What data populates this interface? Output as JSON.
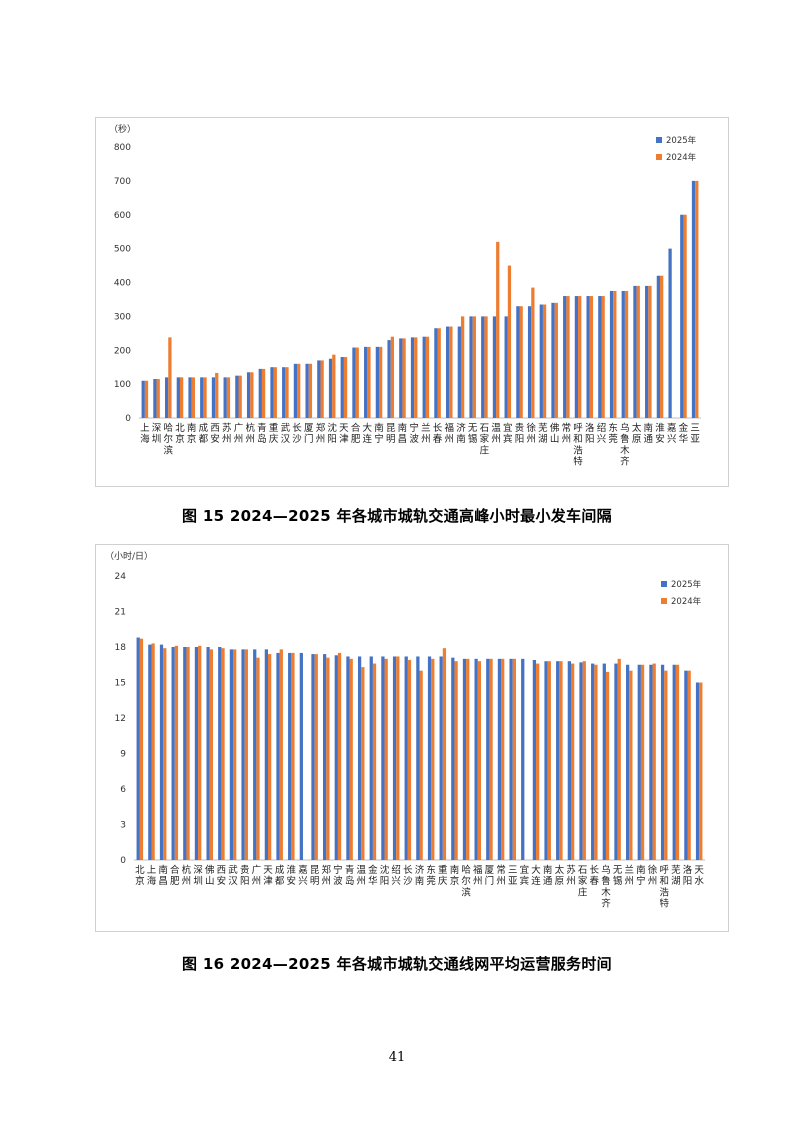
{
  "chart_data": [
    {
      "type": "bar",
      "title": "",
      "ylabel": "（秒）",
      "ylim": [
        0,
        800
      ],
      "yticks": [
        "0",
        "100",
        "200",
        "300",
        "400",
        "500",
        "600",
        "700",
        "800"
      ],
      "legend_position": "top-right",
      "categories": [
        "上海",
        "深圳",
        "哈尔滨",
        "北京",
        "南京",
        "成都",
        "西安",
        "苏州",
        "广州",
        "杭州",
        "青岛",
        "重庆",
        "武汉",
        "长沙",
        "厦门",
        "郑州",
        "沈阳",
        "天津",
        "合肥",
        "大连",
        "南宁",
        "昆明",
        "南昌",
        "宁波",
        "兰州",
        "长春",
        "福州",
        "济南",
        "无锡",
        "石家庄",
        "温州",
        "宜宾",
        "贵阳",
        "徐州",
        "芜湖",
        "佛山",
        "常州",
        "呼和浩特",
        "洛阳",
        "绍兴",
        "东莞",
        "乌鲁木齐",
        "太原",
        "南通",
        "淮安",
        "嘉兴",
        "金华",
        "三亚"
      ],
      "series": [
        {
          "name": "2025年",
          "color": "#4472C4",
          "values": [
            110,
            115,
            120,
            120,
            120,
            120,
            120,
            120,
            125,
            135,
            145,
            150,
            150,
            160,
            160,
            170,
            175,
            180,
            208,
            210,
            210,
            230,
            235,
            238,
            240,
            265,
            270,
            270,
            300,
            300,
            300,
            300,
            330,
            330,
            335,
            340,
            360,
            360,
            360,
            360,
            375,
            375,
            390,
            390,
            420,
            500,
            600,
            700
          ]
        },
        {
          "name": "2024年",
          "color": "#ED7D31",
          "values": [
            110,
            115,
            238,
            120,
            120,
            120,
            133,
            120,
            125,
            135,
            145,
            150,
            150,
            160,
            160,
            170,
            187,
            180,
            208,
            210,
            210,
            240,
            235,
            238,
            240,
            265,
            270,
            300,
            300,
            300,
            520,
            450,
            330,
            385,
            335,
            340,
            360,
            360,
            360,
            360,
            375,
            375,
            390,
            390,
            420,
            null,
            600,
            700
          ]
        }
      ]
    },
    {
      "type": "bar",
      "title": "",
      "ylabel": "（小时/日）",
      "ylim": [
        0,
        24
      ],
      "yticks": [
        "0",
        "3",
        "6",
        "9",
        "12",
        "15",
        "18",
        "21",
        "24"
      ],
      "legend_position": "top-right",
      "categories": [
        "北京",
        "上海",
        "南昌",
        "合肥",
        "杭州",
        "深圳",
        "佛山",
        "西安",
        "武汉",
        "贵阳",
        "广州",
        "天津",
        "成都",
        "淮安",
        "嘉兴",
        "昆明",
        "郑州",
        "宁波",
        "青岛",
        "温州",
        "金华",
        "沈阳",
        "绍兴",
        "长沙",
        "济南",
        "东莞",
        "重庆",
        "南京",
        "哈尔滨",
        "福州",
        "厦门",
        "常州",
        "三亚",
        "宜宾",
        "大连",
        "南通",
        "太原",
        "苏州",
        "石家庄",
        "长春",
        "乌鲁木齐",
        "无锡",
        "兰州",
        "南宁",
        "徐州",
        "呼和浩特",
        "芜湖",
        "洛阳",
        "天水"
      ],
      "series": [
        {
          "name": "2025年",
          "color": "#4472C4",
          "values": [
            18.8,
            18.2,
            18.2,
            18.0,
            18.0,
            18.0,
            18.0,
            18.0,
            17.8,
            17.8,
            17.8,
            17.8,
            17.5,
            17.5,
            17.5,
            17.4,
            17.4,
            17.3,
            17.2,
            17.2,
            17.2,
            17.2,
            17.2,
            17.2,
            17.2,
            17.2,
            17.2,
            17.1,
            17.0,
            17.0,
            17.0,
            17.0,
            17.0,
            17.0,
            16.9,
            16.8,
            16.8,
            16.8,
            16.7,
            16.6,
            16.6,
            16.6,
            16.5,
            16.5,
            16.5,
            16.5,
            16.5,
            16.0,
            15.0
          ]
        },
        {
          "name": "2024年",
          "color": "#ED7D31",
          "values": [
            18.7,
            18.3,
            17.9,
            18.1,
            18.0,
            18.1,
            17.8,
            17.9,
            17.8,
            17.8,
            17.1,
            17.4,
            17.8,
            17.5,
            null,
            17.4,
            17.1,
            17.5,
            17.0,
            16.3,
            16.6,
            17.0,
            17.2,
            16.9,
            16.0,
            17.0,
            17.9,
            16.8,
            17.0,
            16.8,
            17.0,
            17.0,
            17.0,
            null,
            16.6,
            16.8,
            16.8,
            16.6,
            16.8,
            16.5,
            15.9,
            17.0,
            16.0,
            16.5,
            16.6,
            16.0,
            16.5,
            16.0,
            15.0
          ]
        }
      ]
    }
  ],
  "captions": {
    "fig15": "图 15   2024—2025 年各城市城轨交通高峰小时最小发车间隔",
    "fig16": "图 16   2024—2025 年各城市城轨交通线网平均运营服务时间"
  },
  "page_number": "41"
}
